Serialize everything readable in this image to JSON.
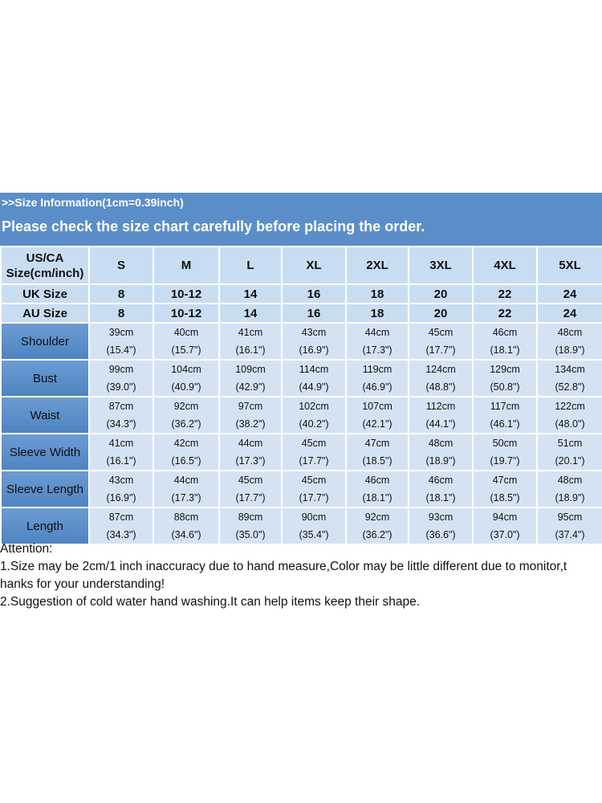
{
  "header": {
    "info": ">>Size Information(1cm=0.39inch)",
    "notice": "Please check the size chart carefully before placing the order."
  },
  "table": {
    "size_label_line1": "US/CA",
    "size_label_line2": "Size(cm/inch)",
    "sizes": [
      "S",
      "M",
      "L",
      "XL",
      "2XL",
      "3XL",
      "4XL",
      "5XL"
    ],
    "uk_label": "UK Size",
    "uk": [
      "8",
      "10-12",
      "14",
      "16",
      "18",
      "20",
      "22",
      "24"
    ],
    "au_label": "AU Size",
    "au": [
      "8",
      "10-12",
      "14",
      "16",
      "18",
      "20",
      "22",
      "24"
    ],
    "rows": [
      {
        "label": "Shoulder",
        "cm": [
          "39cm",
          "40cm",
          "41cm",
          "43cm",
          "44cm",
          "45cm",
          "46cm",
          "48cm"
        ],
        "in": [
          "(15.4\")",
          "(15.7\")",
          "(16.1\")",
          "(16.9\")",
          "(17.3\")",
          "(17.7\")",
          "(18.1\")",
          "(18.9\")"
        ]
      },
      {
        "label": "Bust",
        "cm": [
          "99cm",
          "104cm",
          "109cm",
          "114cm",
          "119cm",
          "124cm",
          "129cm",
          "134cm"
        ],
        "in": [
          "(39.0\")",
          "(40.9\")",
          "(42.9\")",
          "(44.9\")",
          "(46.9\")",
          "(48.8\")",
          "(50.8\")",
          "(52.8\")"
        ]
      },
      {
        "label": "Waist",
        "cm": [
          "87cm",
          "92cm",
          "97cm",
          "102cm",
          "107cm",
          "112cm",
          "117cm",
          "122cm"
        ],
        "in": [
          "(34.3\")",
          "(36.2\")",
          "(38.2\")",
          "(40.2\")",
          "(42.1\")",
          "(44.1\")",
          "(46.1\")",
          "(48.0\")"
        ]
      },
      {
        "label": "Sleeve Width",
        "cm": [
          "41cm",
          "42cm",
          "44cm",
          "45cm",
          "47cm",
          "48cm",
          "50cm",
          "51cm"
        ],
        "in": [
          "(16.1\")",
          "(16.5\")",
          "(17.3\")",
          "(17.7\")",
          "(18.5\")",
          "(18.9\")",
          "(19.7\")",
          "(20.1\")"
        ]
      },
      {
        "label": "Sleeve Length",
        "cm": [
          "43cm",
          "44cm",
          "45cm",
          "45cm",
          "46cm",
          "46cm",
          "47cm",
          "48cm"
        ],
        "in": [
          "(16.9\")",
          "(17.3\")",
          "(17.7\")",
          "(17.7\")",
          "(18.1\")",
          "(18.1\")",
          "(18.5\")",
          "(18.9\")"
        ]
      },
      {
        "label": "Length",
        "cm": [
          "87cm",
          "88cm",
          "89cm",
          "90cm",
          "92cm",
          "93cm",
          "94cm",
          "95cm"
        ],
        "in": [
          "(34.3\")",
          "(34.6\")",
          "(35.0\")",
          "(35.4\")",
          "(36.2\")",
          "(36.6\")",
          "(37.0\")",
          "(37.4\")"
        ]
      }
    ]
  },
  "attention": {
    "title": "Attention:",
    "line1a": "1.Size may be 2cm/1 inch inaccuracy due to hand measure,Color may be little different due to monitor,t",
    "line1b": "hanks for your understanding!",
    "line2": "2.Suggestion of cold water hand washing.It can help items keep their shape."
  },
  "colors": {
    "banner": "#5b8ec9",
    "header_cell": "#c9ddf2",
    "data_cell": "#d4e3f3",
    "row_label": "#5b8ec9"
  }
}
